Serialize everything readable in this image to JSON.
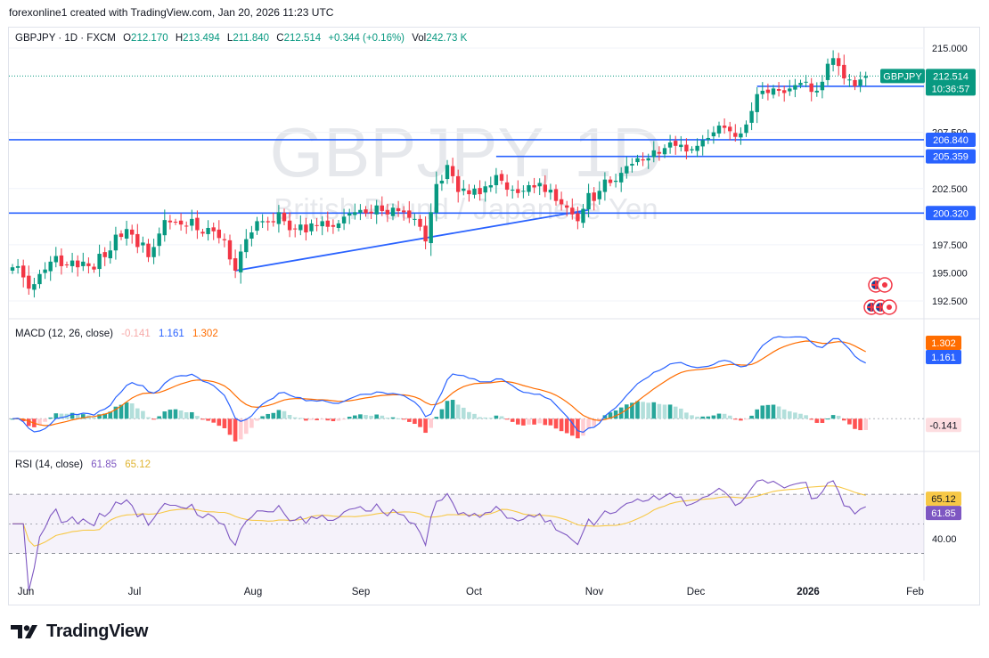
{
  "credit": "forexonline1 created with TradingView.com, Jan 20, 2026 11:23 UTC",
  "footer_brand": "TradingView",
  "watermark": {
    "symbol": "GBPJPY, 1D",
    "description": "British Pound / Japanese Yen"
  },
  "header": {
    "symbol": "GBPJPY · 1D · FXCM",
    "o_label": "O",
    "o": "212.170",
    "h_label": "H",
    "h": "213.494",
    "l_label": "L",
    "l": "211.840",
    "c_label": "C",
    "c": "212.514",
    "change": "+0.344 (+0.16%)",
    "vol_label": "Vol",
    "vol": "242.73 K"
  },
  "colors": {
    "up": "#089981",
    "down": "#f23645",
    "level": "#2962ff",
    "macd": "#2962ff",
    "signal": "#ff6d00",
    "rsi": "#7e57c2",
    "rsi_ma": "#f7c846"
  },
  "chart_data": [
    {
      "type": "candlestick",
      "title": "GBPJPY · 1D · FXCM",
      "ylim": [
        191,
        216.5
      ],
      "y_ticks": [
        "215.000",
        "207.500",
        "202.500",
        "197.500",
        "195.000",
        "192.500"
      ],
      "x_ticks": [
        "Jun",
        "Jul",
        "Aug",
        "Sep",
        "Oct",
        "Nov",
        "Dec",
        "2026",
        "Feb"
      ],
      "horizontal_levels": [
        "206.840",
        "205.359",
        "200.320",
        "211.598"
      ],
      "trendline": {
        "from": {
          "bar": 41,
          "price": 195.2
        },
        "to": {
          "bar": 106,
          "price": 200.6
        }
      },
      "last_price_label": {
        "symbol": "GBPJPY",
        "price": "212.514",
        "countdown": "10:36:57"
      },
      "closes": [
        195.5,
        195.6,
        194.6,
        193.6,
        194.0,
        194.9,
        195.3,
        196.0,
        196.5,
        195.6,
        195.7,
        196.1,
        195.5,
        196.0,
        195.6,
        195.3,
        196.7,
        196.4,
        197.0,
        198.4,
        198.2,
        198.9,
        198.4,
        197.3,
        197.7,
        196.4,
        197.3,
        198.5,
        199.7,
        199.5,
        199.5,
        199.3,
        199.2,
        199.8,
        198.8,
        198.5,
        199.0,
        198.7,
        198.1,
        197.9,
        196.2,
        195.2,
        196.9,
        198.0,
        198.6,
        199.6,
        199.6,
        199.5,
        199.5,
        200.4,
        199.6,
        198.8,
        198.9,
        199.3,
        198.6,
        199.4,
        199.2,
        199.6,
        199.1,
        199.1,
        199.4,
        200.0,
        200.3,
        200.4,
        200.6,
        200.3,
        200.3,
        201.0,
        200.5,
        200.2,
        200.8,
        200.5,
        200.4,
        199.9,
        199.8,
        199.1,
        197.8,
        200.4,
        202.9,
        203.2,
        204.6,
        203.6,
        202.2,
        202.5,
        202.0,
        202.5,
        202.0,
        202.7,
        202.8,
        203.7,
        203.2,
        202.4,
        202.4,
        202.1,
        202.3,
        202.8,
        202.6,
        203.0,
        202.2,
        202.4,
        201.4,
        201.1,
        200.8,
        200.2,
        199.6,
        200.7,
        202.1,
        201.4,
        202.3,
        203.3,
        203.0,
        203.2,
        203.9,
        204.5,
        204.7,
        205.2,
        205.0,
        205.2,
        205.9,
        205.6,
        206.1,
        206.6,
        206.3,
        206.4,
        205.8,
        206.0,
        206.3,
        206.8,
        207.0,
        207.5,
        208.1,
        207.9,
        207.6,
        207.1,
        207.4,
        208.2,
        209.4,
        210.9,
        211.2,
        211.0,
        211.4,
        211.2,
        211.0,
        211.4,
        211.7,
        211.9,
        212.0,
        211.1,
        211.2,
        212.0,
        213.6,
        214.1,
        213.4,
        212.3,
        212.2,
        211.6,
        212.2,
        212.5
      ],
      "macd": {
        "params": "MACD (12, 26, close)",
        "histogram": "-0.141",
        "macd": "1.161",
        "signal": "1.302"
      },
      "rsi": {
        "params": "RSI (14, close)",
        "value": "61.85",
        "ma": "65.12",
        "tick": "40.00",
        "band_upper": 70,
        "band_lower": 30
      }
    }
  ]
}
